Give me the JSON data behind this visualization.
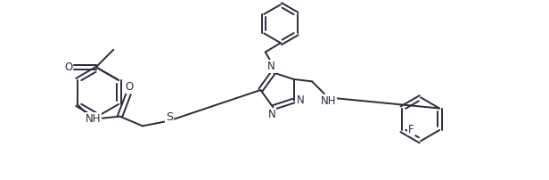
{
  "bg_color": "#ffffff",
  "line_color": "#2b2b3b",
  "fig_width": 6.16,
  "fig_height": 2.02,
  "dpi": 100,
  "xlim": [
    0,
    12.5
  ],
  "ylim": [
    0,
    4.1
  ]
}
